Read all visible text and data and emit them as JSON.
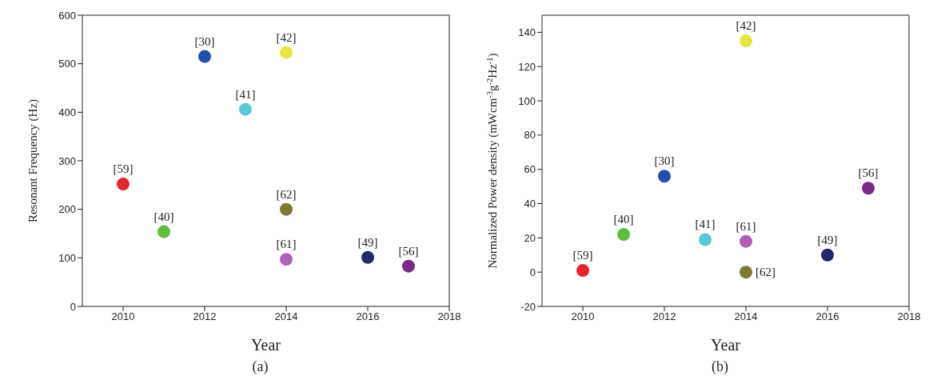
{
  "chart_data": [
    {
      "type": "scatter",
      "xlabel": "Year",
      "ylabel": "Resonant Frequency (Hz)",
      "annotations": [
        "(a)"
      ],
      "xlim": [
        2009,
        2018
      ],
      "xticks": [
        2010,
        2012,
        2014,
        2016,
        2018
      ],
      "ylim": [
        0,
        600
      ],
      "yticks": [
        0,
        100,
        200,
        300,
        400,
        500,
        600
      ],
      "grid": false,
      "legend": false,
      "marker": "circle",
      "series": [
        {
          "name": "[59]",
          "color": "#e8232a",
          "x": [
            2010
          ],
          "values": [
            252
          ]
        },
        {
          "name": "[40]",
          "color": "#5bbf3c",
          "x": [
            2011
          ],
          "values": [
            154
          ]
        },
        {
          "name": "[30]",
          "color": "#2250a8",
          "x": [
            2012
          ],
          "values": [
            515
          ]
        },
        {
          "name": "[41]",
          "color": "#5bc8d6",
          "x": [
            2013
          ],
          "values": [
            406
          ]
        },
        {
          "name": "[42]",
          "color": "#e6e640",
          "x": [
            2014
          ],
          "values": [
            523
          ]
        },
        {
          "name": "[62]",
          "color": "#7a7a30",
          "x": [
            2014
          ],
          "values": [
            200
          ]
        },
        {
          "name": "[61]",
          "color": "#b060b8",
          "x": [
            2014
          ],
          "values": [
            97
          ]
        },
        {
          "name": "[49]",
          "color": "#25286a",
          "x": [
            2016
          ],
          "values": [
            101
          ]
        },
        {
          "name": "[56]",
          "color": "#7a2a8a",
          "x": [
            2017
          ],
          "values": [
            83
          ]
        }
      ]
    },
    {
      "type": "scatter",
      "xlabel": "Year",
      "ylabel": "Normalized Power density (mWcm$^{-3}$g$^{-2}$Hz$^{-1}$)",
      "annotations": [
        "(b)"
      ],
      "xlim": [
        2009,
        2018
      ],
      "xticks": [
        2010,
        2012,
        2014,
        2016,
        2018
      ],
      "ylim": [
        -20,
        150
      ],
      "yticks": [
        -20,
        0,
        20,
        40,
        60,
        80,
        100,
        120,
        140
      ],
      "grid": false,
      "legend": false,
      "marker": "circle",
      "series": [
        {
          "name": "[59]",
          "color": "#e8232a",
          "x": [
            2010
          ],
          "values": [
            1
          ]
        },
        {
          "name": "[40]",
          "color": "#5bbf3c",
          "x": [
            2011
          ],
          "values": [
            22
          ]
        },
        {
          "name": "[30]",
          "color": "#2250a8",
          "x": [
            2012
          ],
          "values": [
            56
          ]
        },
        {
          "name": "[41]",
          "color": "#5bc8d6",
          "x": [
            2013
          ],
          "values": [
            19
          ]
        },
        {
          "name": "[42]",
          "color": "#e6e640",
          "x": [
            2014
          ],
          "values": [
            135
          ]
        },
        {
          "name": "[61]",
          "color": "#b060b8",
          "x": [
            2014
          ],
          "values": [
            18
          ]
        },
        {
          "name": "[62]",
          "color": "#7a7a30",
          "x": [
            2014
          ],
          "values": [
            0
          ]
        },
        {
          "name": "[49]",
          "color": "#25286a",
          "x": [
            2016
          ],
          "values": [
            10
          ]
        },
        {
          "name": "[56]",
          "color": "#7a2a8a",
          "x": [
            2017
          ],
          "values": [
            49
          ]
        }
      ]
    }
  ]
}
